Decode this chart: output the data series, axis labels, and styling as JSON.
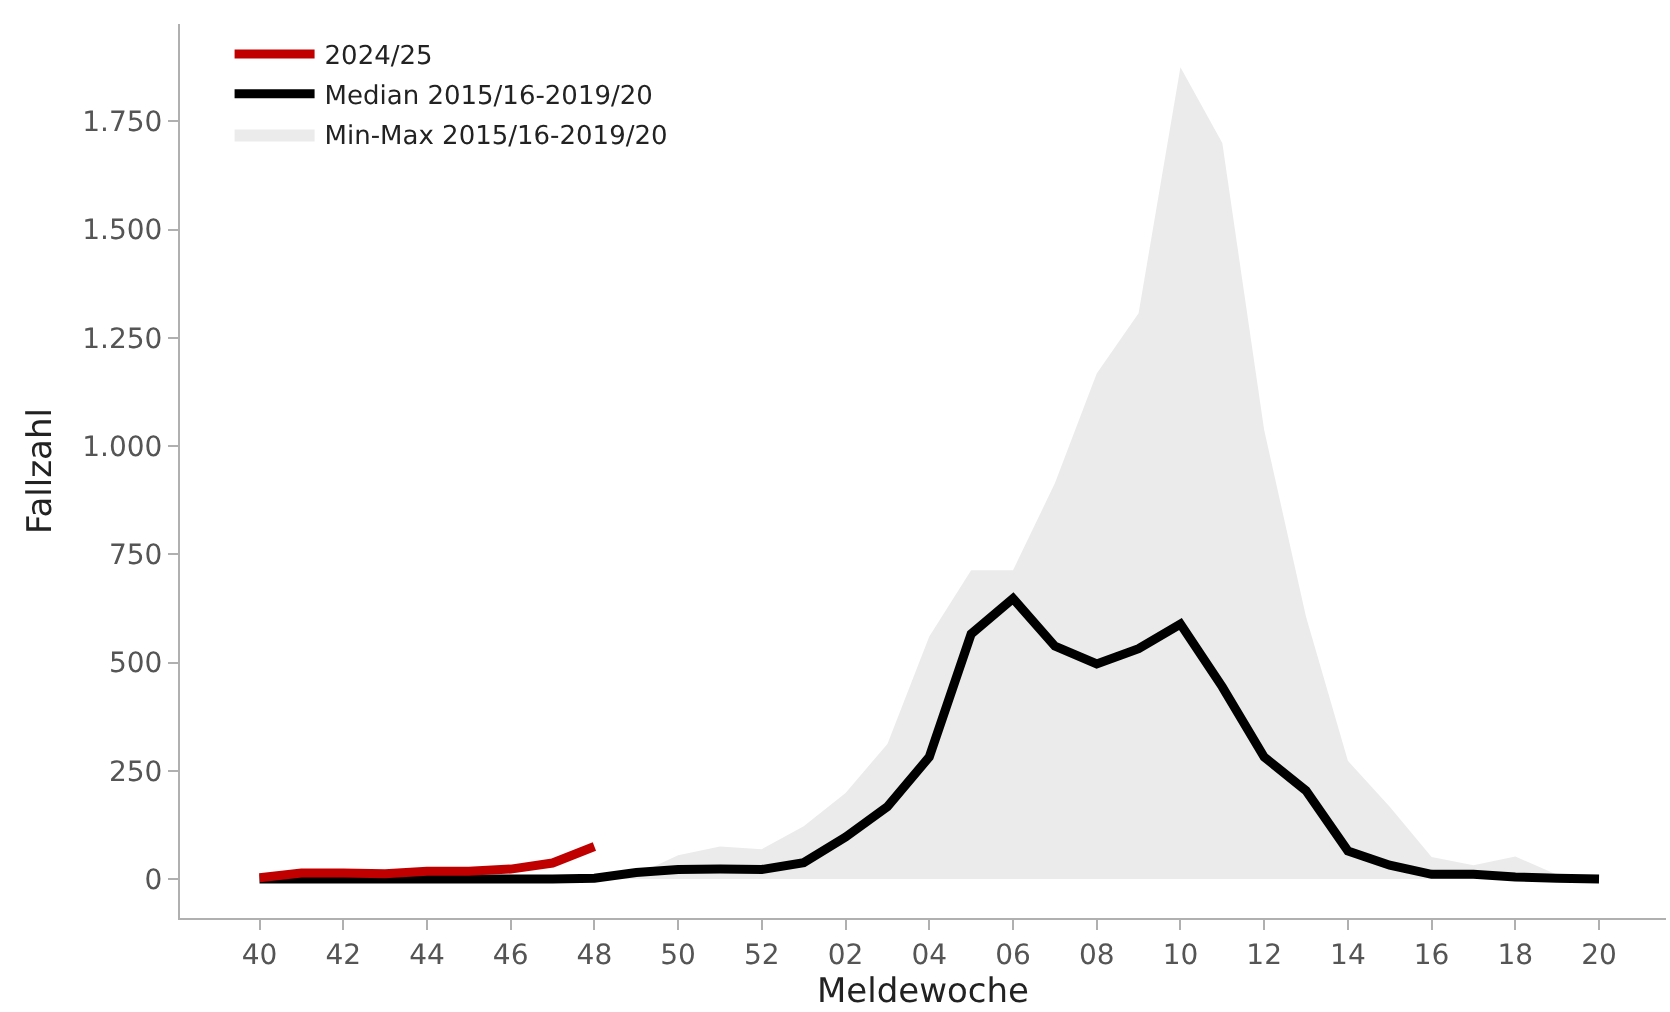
{
  "chart_data": {
    "type": "line",
    "xlabel": "Meldewoche",
    "ylabel": "Fallzahl",
    "categories": [
      "40",
      null,
      "42",
      null,
      "44",
      null,
      "46",
      null,
      "48",
      null,
      "50",
      null,
      "52",
      null,
      "02",
      null,
      "04",
      null,
      "06",
      null,
      "08",
      null,
      "10",
      null,
      "12",
      null,
      "14",
      null,
      "16",
      null,
      "18",
      null,
      "20"
    ],
    "series": [
      {
        "name": "2024/25",
        "color": "#c00000",
        "values": [
          3,
          14,
          14,
          12,
          18,
          18,
          23,
          37,
          75,
          null,
          null,
          null,
          null,
          null,
          null,
          null,
          null,
          null,
          null,
          null,
          null,
          null,
          null,
          null,
          null,
          null,
          null,
          null,
          null,
          null,
          null,
          null,
          null
        ]
      },
      {
        "name": "Median 2015/16-2019/20",
        "color": "#000000",
        "values": [
          0,
          0,
          0,
          0,
          0,
          0,
          0,
          0,
          2,
          15,
          22,
          23,
          22,
          38,
          97,
          167,
          282,
          566,
          648,
          538,
          497,
          532,
          589,
          444,
          282,
          204,
          65,
          32,
          11,
          11,
          5,
          2,
          0
        ]
      },
      {
        "name": "Min-Max 2015/16-2019/20",
        "type": "area",
        "color": "#ebebeb",
        "values": [
          0,
          0,
          0,
          0,
          0,
          0,
          0,
          0,
          5,
          10,
          55,
          75,
          69,
          122,
          199,
          312,
          560,
          713,
          713,
          914,
          1168,
          1307,
          1875,
          1700,
          1037,
          606,
          273,
          167,
          51,
          32,
          52,
          10,
          0
        ]
      }
    ],
    "ylim": [
      -90,
      1975
    ],
    "yticks": [
      0,
      250,
      500,
      750,
      {
        "value": 1000,
        "label": "1.000"
      },
      {
        "value": 1250,
        "label": "1.250"
      },
      {
        "value": 1500,
        "label": "1.500"
      },
      {
        "value": 1750,
        "label": "1.750"
      }
    ],
    "grid": false,
    "legend": "top left",
    "line_style": "solid"
  }
}
